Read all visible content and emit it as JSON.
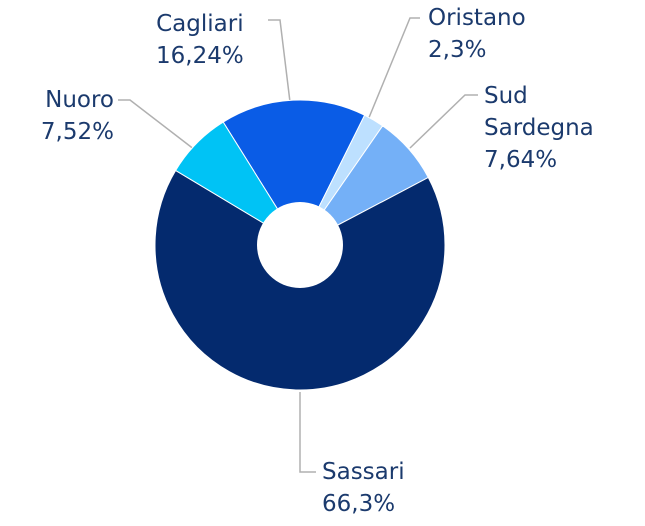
{
  "chart_data": {
    "type": "pie",
    "categories": [
      "Cagliari",
      "Oristano",
      "Sud Sardegna",
      "Sassari",
      "Nuoro"
    ],
    "values": [
      16.24,
      2.3,
      7.64,
      66.3,
      7.52
    ],
    "value_labels": [
      "16,24%",
      "2,3%",
      "7,64%",
      "66,3%",
      "7,52%"
    ],
    "colors": [
      "#0a5ce6",
      "#bde0ff",
      "#74b0f7",
      "#042a6e",
      "#00c3f5"
    ]
  }
}
